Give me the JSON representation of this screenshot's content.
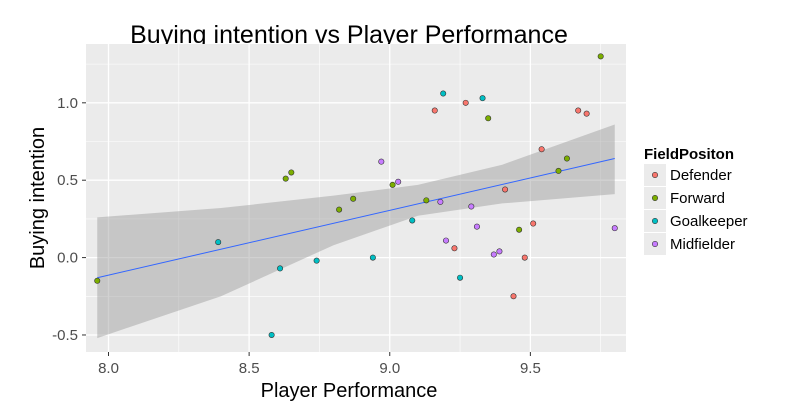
{
  "chart_data": {
    "type": "scatter",
    "title": "Buying intention vs Player Performance",
    "xlabel": "Player Performance",
    "ylabel": "Buying intention",
    "xlim": [
      7.92,
      9.84
    ],
    "ylim": [
      -0.61,
      1.38
    ],
    "x_ticks": [
      8.0,
      8.5,
      9.0,
      9.5
    ],
    "x_tick_labels": [
      "8.0",
      "8.5",
      "9.0",
      "9.5"
    ],
    "y_ticks": [
      -0.5,
      0.0,
      0.5,
      1.0
    ],
    "y_tick_labels": [
      "-0.5",
      "0.0",
      "0.5",
      "1.0"
    ],
    "grid": true,
    "legend": {
      "title": "FieldPositon",
      "placement": "right",
      "entries": [
        "Defender",
        "Forward",
        "Goalkeeper",
        "Midfielder"
      ]
    },
    "colors": {
      "Defender": "#F8766D",
      "Forward": "#7CAE00",
      "Goalkeeper": "#00BFC4",
      "Midfielder": "#C77CFF",
      "panel_background": "#EBEBEB",
      "gridline": "#FFFFFF",
      "fit_line": "#3366FF",
      "ribbon": "#999999"
    },
    "series": [
      {
        "name": "Defender",
        "points": [
          [
            9.16,
            0.95
          ],
          [
            9.27,
            1.0
          ],
          [
            9.54,
            0.7
          ],
          [
            9.67,
            0.95
          ],
          [
            9.7,
            0.93
          ],
          [
            9.41,
            0.44
          ],
          [
            9.51,
            0.22
          ],
          [
            9.23,
            0.06
          ],
          [
            9.48,
            0.0
          ],
          [
            9.44,
            -0.25
          ]
        ]
      },
      {
        "name": "Forward",
        "points": [
          [
            7.96,
            -0.15
          ],
          [
            8.63,
            0.51
          ],
          [
            8.65,
            0.55
          ],
          [
            8.82,
            0.31
          ],
          [
            8.87,
            0.38
          ],
          [
            9.01,
            0.47
          ],
          [
            9.13,
            0.37
          ],
          [
            9.35,
            0.9
          ],
          [
            9.46,
            0.18
          ],
          [
            9.6,
            0.56
          ],
          [
            9.63,
            0.64
          ],
          [
            9.75,
            1.3
          ]
        ]
      },
      {
        "name": "Goalkeeper",
        "points": [
          [
            8.39,
            0.1
          ],
          [
            8.61,
            -0.07
          ],
          [
            8.74,
            -0.02
          ],
          [
            8.94,
            0.0
          ],
          [
            9.08,
            0.24
          ],
          [
            9.19,
            1.06
          ],
          [
            9.33,
            1.03
          ],
          [
            9.25,
            -0.13
          ],
          [
            8.58,
            -0.5
          ]
        ]
      },
      {
        "name": "Midfielder",
        "points": [
          [
            8.97,
            0.62
          ],
          [
            9.03,
            0.49
          ],
          [
            9.18,
            0.36
          ],
          [
            9.2,
            0.11
          ],
          [
            9.29,
            0.33
          ],
          [
            9.31,
            0.2
          ],
          [
            9.37,
            0.02
          ],
          [
            9.39,
            0.04
          ],
          [
            9.8,
            0.19
          ]
        ]
      }
    ],
    "fit_line": {
      "x": [
        7.96,
        9.8
      ],
      "y": [
        -0.13,
        0.64
      ]
    },
    "confidence_band": {
      "x": [
        7.96,
        8.4,
        8.8,
        9.1,
        9.4,
        9.8
      ],
      "upper": [
        0.26,
        0.32,
        0.4,
        0.47,
        0.6,
        0.86
      ],
      "lower": [
        -0.52,
        -0.25,
        0.08,
        0.27,
        0.35,
        0.41
      ]
    }
  }
}
